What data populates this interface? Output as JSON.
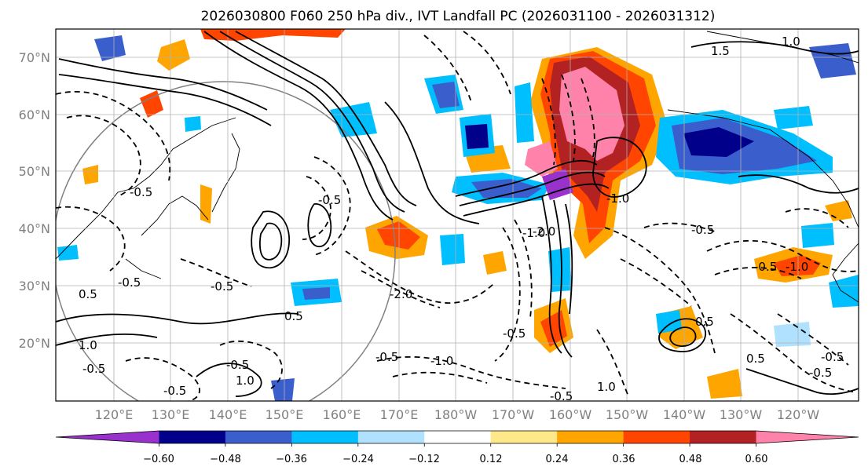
{
  "title": "2026030800 F060 250 hPa div., IVT Landfall PC (2026031100 - 2026031312)",
  "map": {
    "lat_labels": [
      "70°N",
      "60°N",
      "50°N",
      "40°N",
      "30°N",
      "20°N"
    ],
    "lon_labels": [
      "120°E",
      "130°E",
      "140°E",
      "150°E",
      "160°E",
      "170°E",
      "180°W",
      "170°W",
      "160°W",
      "150°W",
      "140°W",
      "130°W",
      "120°W"
    ],
    "contour_labels": [
      "1.5",
      "1.0",
      "-0.5",
      "-0.5",
      "-0.5",
      "0.5",
      "-0.5",
      "-0.5",
      "-2.0",
      "-1.0",
      "-0.5",
      "1.0",
      "-0.5",
      "-1.0",
      "-0.5",
      "-1.0",
      "-0.5",
      "0.5",
      "-0.5",
      "1.0",
      "-0.5",
      "-0.5",
      "-0.5",
      "0.5",
      "-1.0",
      "-2.0",
      "0.5",
      "-0.5",
      "1.0"
    ]
  },
  "colorbar": {
    "ticks": [
      "−0.60",
      "−0.48",
      "−0.36",
      "−0.24",
      "−0.12",
      "0.12",
      "0.24",
      "0.36",
      "0.48",
      "0.60"
    ],
    "colors": [
      "#9932cc",
      "#00008b",
      "#3a5fcd",
      "#00bfff",
      "#b0e2ff",
      "#ffffff",
      "#ffe88a",
      "#ffa500",
      "#ff4500",
      "#b22222",
      "#ff82ab"
    ]
  }
}
